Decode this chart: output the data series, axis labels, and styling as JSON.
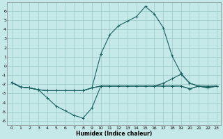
{
  "title": "",
  "xlabel": "Humidex (Indice chaleur)",
  "xlim": [
    -0.5,
    23.5
  ],
  "ylim": [
    -6.5,
    7.0
  ],
  "yticks": [
    -6,
    -5,
    -4,
    -3,
    -2,
    -1,
    0,
    1,
    2,
    3,
    4,
    5,
    6
  ],
  "xticks": [
    0,
    1,
    2,
    3,
    4,
    5,
    6,
    7,
    8,
    9,
    10,
    11,
    12,
    13,
    14,
    15,
    16,
    17,
    18,
    19,
    20,
    21,
    22,
    23
  ],
  "bg_color": "#c5e8e8",
  "grid_color": "#9dcaca",
  "line_color": "#1a6060",
  "line1_x": [
    0,
    1,
    2,
    3,
    4,
    5,
    6,
    7,
    8,
    9,
    10,
    11,
    12,
    13,
    14,
    15,
    16,
    17,
    18,
    19,
    20,
    21,
    22,
    23
  ],
  "line1_y": [
    -1.8,
    -2.3,
    -2.4,
    -2.6,
    -3.5,
    -4.4,
    -4.9,
    -5.4,
    -5.7,
    -4.6,
    -2.2,
    -2.2,
    -2.2,
    -2.2,
    -2.2,
    -2.2,
    -2.2,
    -2.2,
    -2.2,
    -2.2,
    -2.5,
    -2.2,
    -2.2,
    -2.2
  ],
  "line2_x": [
    0,
    1,
    2,
    3,
    4,
    5,
    6,
    7,
    8,
    9,
    10,
    11,
    12,
    13,
    14,
    15,
    16,
    17,
    18,
    19,
    20,
    21,
    22,
    23
  ],
  "line2_y": [
    -1.8,
    -2.3,
    -2.4,
    -2.6,
    -2.7,
    -2.7,
    -2.7,
    -2.7,
    -2.7,
    -2.4,
    1.3,
    3.4,
    4.4,
    4.9,
    5.4,
    6.5,
    5.7,
    4.2,
    1.1,
    -0.8,
    -1.9,
    -2.2,
    -2.4,
    -2.2
  ],
  "line3_x": [
    0,
    1,
    2,
    3,
    4,
    5,
    6,
    7,
    8,
    9,
    10,
    11,
    12,
    13,
    14,
    15,
    16,
    17,
    18,
    19,
    20,
    21,
    22,
    23
  ],
  "line3_y": [
    -1.8,
    -2.3,
    -2.4,
    -2.6,
    -2.7,
    -2.7,
    -2.7,
    -2.7,
    -2.7,
    -2.4,
    -2.2,
    -2.2,
    -2.2,
    -2.2,
    -2.2,
    -2.2,
    -2.2,
    -2.2,
    -2.2,
    -2.2,
    -2.5,
    -2.2,
    -2.3,
    -2.2
  ],
  "line4_x": [
    0,
    1,
    2,
    3,
    4,
    5,
    6,
    7,
    8,
    9,
    10,
    11,
    12,
    13,
    14,
    15,
    16,
    17,
    18,
    19,
    20,
    21,
    22,
    23
  ],
  "line4_y": [
    -1.8,
    -2.3,
    -2.4,
    -2.6,
    -2.7,
    -2.7,
    -2.7,
    -2.7,
    -2.7,
    -2.4,
    -2.2,
    -2.2,
    -2.2,
    -2.2,
    -2.2,
    -2.2,
    -2.2,
    -1.9,
    -1.4,
    -0.9,
    -1.9,
    -2.2,
    -2.4,
    -2.2
  ],
  "xlabel_fontsize": 5.5,
  "tick_fontsize": 4.5
}
